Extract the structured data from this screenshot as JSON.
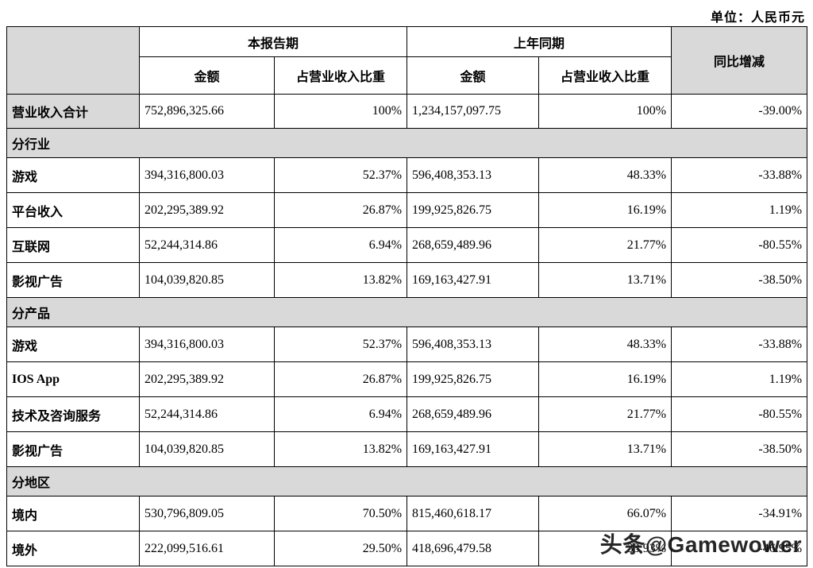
{
  "unit_label": "单位：人民币元",
  "watermark": "头条@Gamewower",
  "table": {
    "header": {
      "current_period": "本报告期",
      "prior_period": "上年同期",
      "yoy_change": "同比增减",
      "amount": "金额",
      "revenue_share": "占营业收入比重"
    },
    "rows": [
      {
        "type": "data",
        "shaded_label": true,
        "label": "营业收入合计",
        "cur_amount": "752,896,325.66",
        "cur_share": "100%",
        "prior_amount": "1,234,157,097.75",
        "prior_share": "100%",
        "yoy": "-39.00%"
      },
      {
        "type": "section",
        "label": "分行业"
      },
      {
        "type": "data",
        "label": "游戏",
        "cur_amount": "394,316,800.03",
        "cur_share": "52.37%",
        "prior_amount": "596,408,353.13",
        "prior_share": "48.33%",
        "yoy": "-33.88%"
      },
      {
        "type": "data",
        "label": "平台收入",
        "cur_amount": "202,295,389.92",
        "cur_share": "26.87%",
        "prior_amount": "199,925,826.75",
        "prior_share": "16.19%",
        "yoy": "1.19%"
      },
      {
        "type": "data",
        "label": "互联网",
        "cur_amount": "52,244,314.86",
        "cur_share": "6.94%",
        "prior_amount": "268,659,489.96",
        "prior_share": "21.77%",
        "yoy": "-80.55%"
      },
      {
        "type": "data",
        "label": "影视广告",
        "cur_amount": "104,039,820.85",
        "cur_share": "13.82%",
        "prior_amount": "169,163,427.91",
        "prior_share": "13.71%",
        "yoy": "-38.50%"
      },
      {
        "type": "section",
        "label": "分产品"
      },
      {
        "type": "data",
        "label": "游戏",
        "cur_amount": "394,316,800.03",
        "cur_share": "52.37%",
        "prior_amount": "596,408,353.13",
        "prior_share": "48.33%",
        "yoy": "-33.88%"
      },
      {
        "type": "data",
        "label": "IOS App",
        "cur_amount": "202,295,389.92",
        "cur_share": "26.87%",
        "prior_amount": "199,925,826.75",
        "prior_share": "16.19%",
        "yoy": "1.19%"
      },
      {
        "type": "data",
        "label": "技术及咨询服务",
        "cur_amount": "52,244,314.86",
        "cur_share": "6.94%",
        "prior_amount": "268,659,489.96",
        "prior_share": "21.77%",
        "yoy": "-80.55%"
      },
      {
        "type": "data",
        "label": "影视广告",
        "cur_amount": "104,039,820.85",
        "cur_share": "13.82%",
        "prior_amount": "169,163,427.91",
        "prior_share": "13.71%",
        "yoy": "-38.50%"
      },
      {
        "type": "section",
        "label": "分地区"
      },
      {
        "type": "data",
        "label": "境内",
        "cur_amount": "530,796,809.05",
        "cur_share": "70.50%",
        "prior_amount": "815,460,618.17",
        "prior_share": "66.07%",
        "yoy": "-34.91%"
      },
      {
        "type": "data",
        "label": "境外",
        "cur_amount": "222,099,516.61",
        "cur_share": "29.50%",
        "prior_amount": "418,696,479.58",
        "prior_share": "33.93%",
        "yoy": "-46.95%"
      }
    ]
  }
}
